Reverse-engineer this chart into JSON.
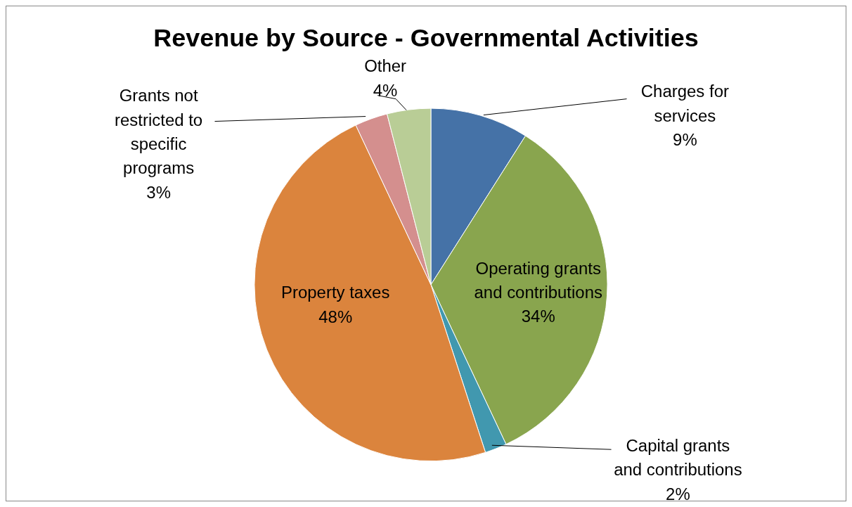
{
  "chart_data": {
    "type": "pie",
    "title": "Revenue by Source - Governmental Activities",
    "categories": [
      "Charges for services",
      "Operating grants and contributions",
      "Capital grants and contributions",
      "Property taxes",
      "Grants not restricted to specific programs",
      "Other"
    ],
    "values": [
      9,
      34,
      2,
      48,
      3,
      4
    ],
    "colors": [
      "#4572a7",
      "#89a54e",
      "#4198af",
      "#db843d",
      "#d48f8e",
      "#b9cd96"
    ],
    "value_labels": [
      "9%",
      "34%",
      "2%",
      "48%",
      "3%",
      "4%"
    ],
    "legend": false
  }
}
